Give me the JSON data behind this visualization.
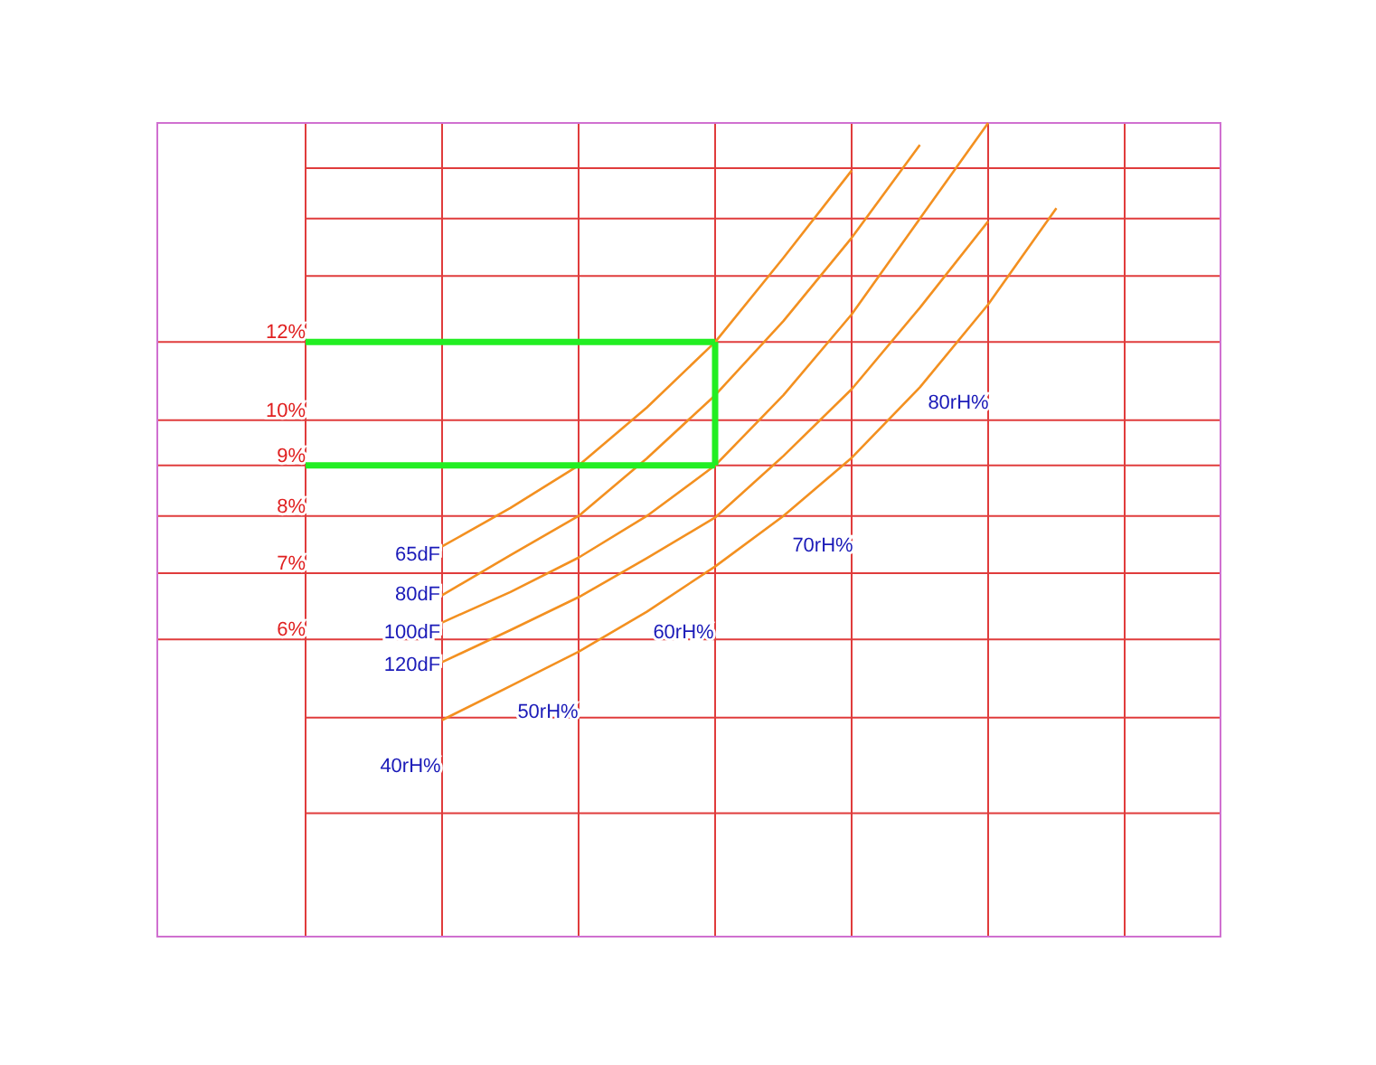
{
  "chart_data": {
    "type": "line",
    "log": "y",
    "grid": true,
    "tick_labels": "y",
    "ylim": [
      3,
      20
    ],
    "categories": [
      null,
      null,
      null,
      null,
      null,
      null,
      null,
      null,
      null,
      null,
      null,
      null,
      null
    ],
    "yticks": [
      {
        "value": 4,
        "label": null
      },
      {
        "value": 5,
        "label": null
      },
      {
        "value": 6,
        "label": "6%"
      },
      {
        "value": 7,
        "label": "7%"
      },
      {
        "value": 8,
        "label": "8%"
      },
      {
        "value": 9,
        "label": "9%"
      },
      {
        "value": 10,
        "label": "10%"
      },
      {
        "value": 12,
        "label": "12%"
      },
      {
        "value": 14,
        "label": null
      },
      {
        "value": 16,
        "label": null
      },
      {
        "value": 18,
        "label": null
      }
    ],
    "series": [
      {
        "color": "#f39020",
        "values": [
          null,
          null,
          7.45,
          8.15,
          9.0,
          10.3,
          12,
          14.6,
          17.9,
          null,
          null,
          null,
          null
        ]
      },
      {
        "color": "#f39020",
        "values": [
          null,
          null,
          6.65,
          7.3,
          8.0,
          9.15,
          10.6,
          12.6,
          15.3,
          19.0,
          null,
          null,
          null
        ]
      },
      {
        "color": "#f39020",
        "values": [
          null,
          null,
          6.24,
          6.7,
          7.26,
          8.0,
          9.0,
          10.6,
          12.8,
          16.0,
          20,
          null,
          null
        ]
      },
      {
        "color": "#f39020",
        "values": [
          null,
          null,
          5.69,
          6.13,
          6.62,
          7.25,
          7.97,
          9.2,
          10.75,
          13.0,
          15.9,
          null,
          null
        ]
      },
      {
        "color": "#f39020",
        "values": [
          null,
          null,
          4.97,
          5.38,
          5.83,
          6.4,
          7.11,
          8.0,
          9.16,
          10.8,
          13.1,
          16.4,
          null
        ]
      },
      {
        "color": "#22ee22",
        "values": [
          12,
          12,
          12,
          12,
          12,
          12,
          12,
          null,
          null,
          null,
          null,
          null,
          null
        ]
      },
      {
        "color": "#22ee22",
        "values": [
          9,
          9,
          9,
          9,
          9,
          9,
          9,
          null,
          null,
          null,
          null,
          null,
          null
        ],
        "errors": [
          null,
          null,
          null,
          null,
          null,
          null,
          [
            9,
            12
          ],
          null,
          null,
          null,
          null,
          null,
          null
        ]
      }
    ],
    "annotations": [
      "65dF",
      "80dF",
      "100dF",
      "120dF",
      "40rH%",
      "50rH%",
      "60rH%",
      "70rH%",
      "80rH%"
    ]
  }
}
